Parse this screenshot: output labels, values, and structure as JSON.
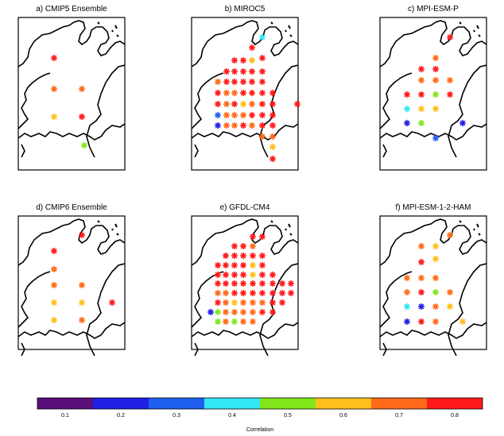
{
  "chart_data": {
    "type": "scatter",
    "colorbar": {
      "title": "Correlation",
      "tick_labels": [
        "0.1",
        "0.2",
        "0.3",
        "0.4",
        "0.5",
        "0.6",
        "0.7",
        "0.8"
      ],
      "colors": [
        "#5a0f7a",
        "#1f1fe6",
        "#1f5ff0",
        "#33e6f5",
        "#80e61a",
        "#ffbf1a",
        "#ff6a1a",
        "#ff1a1a"
      ]
    },
    "panels": [
      {
        "title": "a) CMIP5 Ensemble",
        "points": [
          [
            68,
            73,
            7
          ],
          [
            68,
            112,
            6
          ],
          [
            103,
            112,
            6
          ],
          [
            68,
            147,
            5
          ],
          [
            103,
            147,
            7
          ],
          [
            106,
            183,
            4
          ]
        ]
      },
      {
        "title": "b) MIROC5",
        "points": [
          [
            330,
            47,
            3
          ],
          [
            317,
            60,
            7
          ],
          [
            330,
            73,
            7
          ],
          [
            295,
            76,
            7
          ],
          [
            306,
            76,
            7
          ],
          [
            317,
            76,
            5
          ],
          [
            285,
            90,
            7
          ],
          [
            295,
            90,
            7
          ],
          [
            306,
            90,
            7
          ],
          [
            317,
            90,
            7
          ],
          [
            330,
            90,
            7
          ],
          [
            274,
            103,
            6
          ],
          [
            285,
            103,
            7
          ],
          [
            295,
            103,
            7
          ],
          [
            306,
            103,
            7
          ],
          [
            317,
            103,
            7
          ],
          [
            330,
            103,
            7
          ],
          [
            274,
            117,
            7
          ],
          [
            285,
            117,
            6
          ],
          [
            295,
            117,
            6
          ],
          [
            306,
            117,
            7
          ],
          [
            317,
            117,
            7
          ],
          [
            330,
            117,
            7
          ],
          [
            343,
            117,
            7
          ],
          [
            274,
            131,
            7
          ],
          [
            285,
            131,
            6
          ],
          [
            295,
            131,
            7
          ],
          [
            306,
            131,
            5
          ],
          [
            317,
            131,
            6
          ],
          [
            330,
            131,
            7
          ],
          [
            343,
            131,
            7
          ],
          [
            374,
            131,
            7
          ],
          [
            274,
            145,
            2
          ],
          [
            285,
            145,
            6
          ],
          [
            295,
            145,
            6
          ],
          [
            306,
            145,
            6
          ],
          [
            317,
            145,
            7
          ],
          [
            330,
            145,
            7
          ],
          [
            343,
            145,
            7
          ],
          [
            274,
            158,
            1
          ],
          [
            285,
            158,
            6
          ],
          [
            295,
            158,
            6
          ],
          [
            306,
            158,
            7
          ],
          [
            317,
            158,
            6
          ],
          [
            330,
            158,
            7
          ],
          [
            343,
            158,
            7
          ],
          [
            330,
            172,
            6
          ],
          [
            343,
            172,
            6
          ],
          [
            343,
            185,
            5
          ],
          [
            343,
            200,
            7
          ]
        ]
      },
      {
        "title": "c) MPI-ESM-P",
        "points": [
          [
            566,
            47,
            7
          ],
          [
            548,
            73,
            6
          ],
          [
            530,
            87,
            7
          ],
          [
            548,
            87,
            7
          ],
          [
            530,
            101,
            6
          ],
          [
            548,
            101,
            6
          ],
          [
            566,
            101,
            6
          ],
          [
            512,
            119,
            7
          ],
          [
            530,
            119,
            7
          ],
          [
            548,
            119,
            4
          ],
          [
            566,
            119,
            7
          ],
          [
            512,
            137,
            3
          ],
          [
            530,
            137,
            5
          ],
          [
            548,
            137,
            5
          ],
          [
            512,
            155,
            1
          ],
          [
            530,
            155,
            4
          ],
          [
            582,
            155,
            1
          ],
          [
            548,
            174,
            2
          ]
        ]
      },
      {
        "title": "d) CMIP6 Ensemble",
        "points": [
          [
            103,
            296,
            7
          ],
          [
            68,
            316,
            7
          ],
          [
            68,
            339,
            6
          ],
          [
            68,
            359,
            6
          ],
          [
            103,
            359,
            6
          ],
          [
            68,
            381,
            5
          ],
          [
            103,
            381,
            5
          ],
          [
            141,
            381,
            7
          ],
          [
            68,
            403,
            5
          ],
          [
            103,
            403,
            6
          ]
        ]
      },
      {
        "title": "e) GFDL-CM4",
        "points": [
          [
            318,
            298,
            7
          ],
          [
            330,
            298,
            7
          ],
          [
            295,
            310,
            7
          ],
          [
            306,
            310,
            7
          ],
          [
            318,
            310,
            6
          ],
          [
            284,
            322,
            7
          ],
          [
            295,
            322,
            7
          ],
          [
            306,
            322,
            7
          ],
          [
            318,
            322,
            7
          ],
          [
            330,
            322,
            7
          ],
          [
            274,
            334,
            7
          ],
          [
            284,
            334,
            7
          ],
          [
            295,
            334,
            7
          ],
          [
            306,
            334,
            7
          ],
          [
            318,
            334,
            5
          ],
          [
            330,
            334,
            7
          ],
          [
            274,
            346,
            7
          ],
          [
            284,
            346,
            7
          ],
          [
            295,
            346,
            7
          ],
          [
            306,
            346,
            7
          ],
          [
            318,
            346,
            5
          ],
          [
            330,
            346,
            7
          ],
          [
            343,
            346,
            7
          ],
          [
            274,
            357,
            7
          ],
          [
            284,
            357,
            7
          ],
          [
            295,
            357,
            7
          ],
          [
            306,
            357,
            7
          ],
          [
            318,
            357,
            7
          ],
          [
            330,
            357,
            7
          ],
          [
            343,
            357,
            7
          ],
          [
            355,
            357,
            7
          ],
          [
            366,
            357,
            7
          ],
          [
            274,
            369,
            6
          ],
          [
            284,
            369,
            6
          ],
          [
            295,
            369,
            7
          ],
          [
            306,
            369,
            7
          ],
          [
            318,
            369,
            7
          ],
          [
            330,
            369,
            7
          ],
          [
            343,
            369,
            7
          ],
          [
            355,
            369,
            7
          ],
          [
            366,
            369,
            7
          ],
          [
            274,
            381,
            7
          ],
          [
            284,
            381,
            6
          ],
          [
            295,
            381,
            5
          ],
          [
            306,
            381,
            6
          ],
          [
            318,
            381,
            6
          ],
          [
            330,
            381,
            6
          ],
          [
            343,
            381,
            7
          ],
          [
            355,
            381,
            7
          ],
          [
            265,
            393,
            1
          ],
          [
            274,
            393,
            4
          ],
          [
            284,
            393,
            6
          ],
          [
            295,
            393,
            6
          ],
          [
            306,
            393,
            6
          ],
          [
            318,
            393,
            6
          ],
          [
            330,
            393,
            7
          ],
          [
            343,
            393,
            7
          ],
          [
            274,
            405,
            4
          ],
          [
            284,
            405,
            6
          ],
          [
            295,
            405,
            4
          ],
          [
            306,
            405,
            6
          ],
          [
            318,
            405,
            6
          ]
        ]
      },
      {
        "title": "f) MPI-ESM-1-2-HAM",
        "points": [
          [
            566,
            296,
            6
          ],
          [
            530,
            310,
            6
          ],
          [
            548,
            310,
            5
          ],
          [
            548,
            326,
            5
          ],
          [
            530,
            330,
            7
          ],
          [
            512,
            350,
            6
          ],
          [
            530,
            350,
            6
          ],
          [
            548,
            350,
            6
          ],
          [
            512,
            368,
            6
          ],
          [
            530,
            368,
            7
          ],
          [
            548,
            368,
            4
          ],
          [
            566,
            368,
            6
          ],
          [
            512,
            386,
            3
          ],
          [
            530,
            386,
            1
          ],
          [
            548,
            386,
            6
          ],
          [
            566,
            386,
            5
          ],
          [
            512,
            405,
            1
          ],
          [
            530,
            405,
            7
          ],
          [
            548,
            405,
            6
          ],
          [
            582,
            405,
            5
          ]
        ]
      }
    ]
  }
}
